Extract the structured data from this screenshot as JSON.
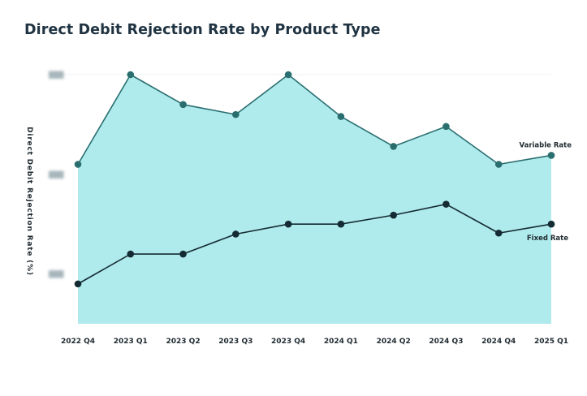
{
  "chart_data": {
    "type": "area",
    "title": "Direct Debit Rejection Rate by Product Type",
    "xlabel": "",
    "ylabel": "Direct Debit  Rejection Rate (%)",
    "categories": [
      "2022 Q4",
      "2023 Q1",
      "2023 Q2",
      "2023 Q3",
      "2023 Q4",
      "2024 Q1",
      "2024 Q2",
      "2024 Q3",
      "2024 Q4",
      "2025 Q1"
    ],
    "ylim": [
      0,
      2.5
    ],
    "yticks": [
      0.5,
      1.5,
      2.5
    ],
    "ytick_labels": [
      "███",
      "███",
      "███"
    ],
    "grid": false,
    "series": [
      {
        "name": "Variable Rate",
        "values": [
          1.6,
          2.5,
          2.2,
          2.1,
          2.5,
          2.08,
          1.78,
          1.98,
          1.6,
          1.69
        ],
        "color": "#2a6e70",
        "fill": "#afebec"
      },
      {
        "name": "Fixed Rate",
        "values": [
          0.4,
          0.7,
          0.7,
          0.9,
          1.0,
          1.0,
          1.09,
          1.2,
          0.91,
          1.0
        ],
        "color": "#152b33"
      }
    ]
  }
}
